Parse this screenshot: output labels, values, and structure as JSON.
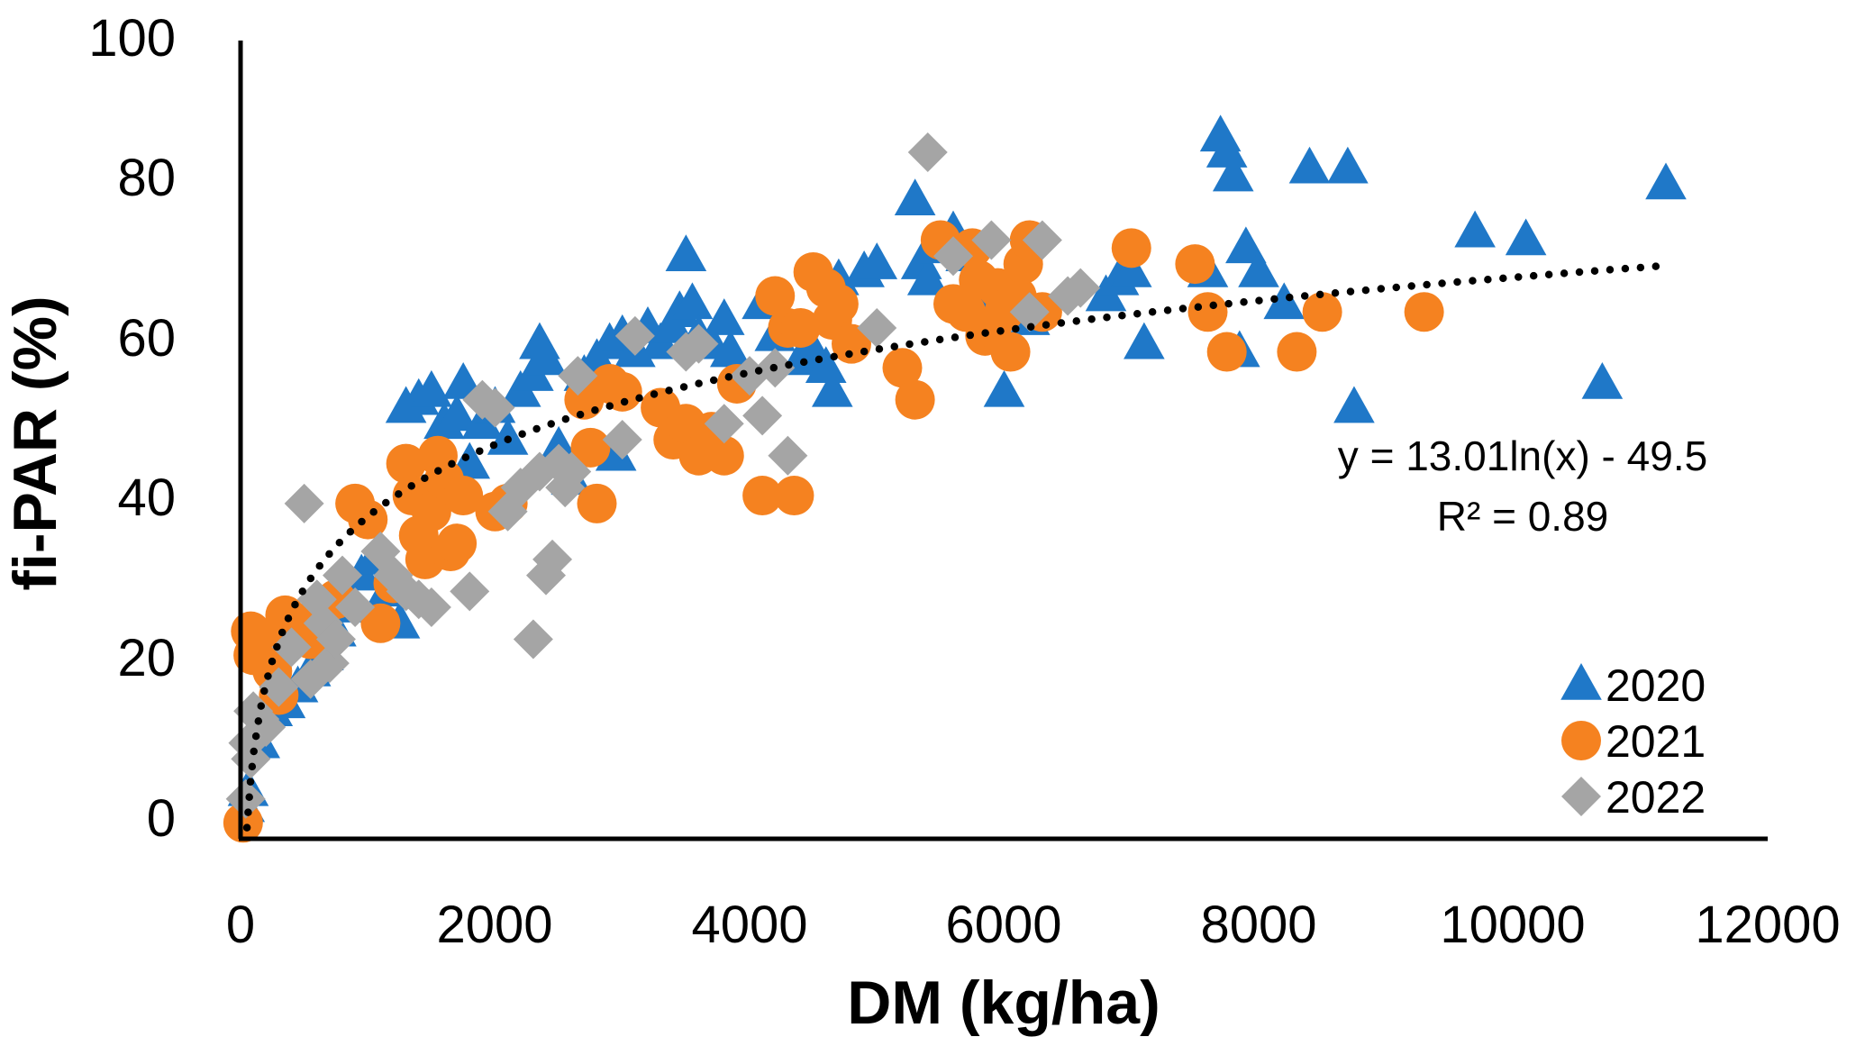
{
  "chart_data": {
    "type": "scatter",
    "xlabel": "DM (kg/ha)",
    "ylabel": "fi-PAR (%)",
    "xlim": [
      0,
      12000
    ],
    "ylim": [
      0,
      100
    ],
    "x_ticks": [
      "0",
      "2000",
      "4000",
      "6000",
      "8000",
      "10000",
      "12000"
    ],
    "y_ticks": [
      "0",
      "20",
      "40",
      "60",
      "80",
      "100"
    ],
    "grid": false,
    "legend_position": "bottom-right",
    "trendline": {
      "type": "logarithmic",
      "a": 13.01,
      "b": -49.5,
      "x_range": [
        50,
        11200
      ],
      "equation": "y = 13.01ln(x) - 49.5",
      "r_squared_label": "R² = 0.89",
      "color": "#000000"
    },
    "series": [
      {
        "name": "2020",
        "marker": "triangle",
        "color": "#1F78C8",
        "points": [
          [
            30,
            4
          ],
          [
            60,
            6
          ],
          [
            150,
            12
          ],
          [
            250,
            16
          ],
          [
            350,
            17
          ],
          [
            450,
            19
          ],
          [
            550,
            21
          ],
          [
            650,
            23
          ],
          [
            750,
            26
          ],
          [
            850,
            29
          ],
          [
            950,
            33
          ],
          [
            1050,
            35
          ],
          [
            1150,
            31
          ],
          [
            1250,
            27
          ],
          [
            1300,
            54
          ],
          [
            1400,
            55
          ],
          [
            1500,
            56
          ],
          [
            1600,
            52
          ],
          [
            1700,
            53
          ],
          [
            1750,
            57
          ],
          [
            1800,
            47
          ],
          [
            1900,
            52
          ],
          [
            2000,
            54
          ],
          [
            2100,
            50
          ],
          [
            2200,
            56
          ],
          [
            2300,
            58
          ],
          [
            2350,
            62
          ],
          [
            2400,
            60
          ],
          [
            2500,
            49
          ],
          [
            2600,
            45
          ],
          [
            2700,
            58
          ],
          [
            2800,
            60
          ],
          [
            2900,
            62
          ],
          [
            2950,
            48
          ],
          [
            3000,
            63
          ],
          [
            3100,
            61
          ],
          [
            3200,
            64
          ],
          [
            3300,
            62
          ],
          [
            3400,
            64
          ],
          [
            3450,
            66
          ],
          [
            3500,
            73
          ],
          [
            3550,
            67
          ],
          [
            3600,
            63
          ],
          [
            3700,
            62
          ],
          [
            3800,
            65
          ],
          [
            3850,
            61
          ],
          [
            4100,
            67
          ],
          [
            4200,
            63
          ],
          [
            4400,
            60
          ],
          [
            4500,
            61
          ],
          [
            4600,
            59
          ],
          [
            4650,
            56
          ],
          [
            4700,
            70
          ],
          [
            4900,
            71
          ],
          [
            5000,
            72
          ],
          [
            5300,
            80
          ],
          [
            5350,
            72
          ],
          [
            5400,
            70
          ],
          [
            5500,
            74
          ],
          [
            5600,
            76
          ],
          [
            5700,
            73
          ],
          [
            5800,
            70
          ],
          [
            5900,
            68
          ],
          [
            6000,
            56
          ],
          [
            6200,
            65
          ],
          [
            6800,
            68
          ],
          [
            6900,
            70
          ],
          [
            7000,
            71
          ],
          [
            7100,
            62
          ],
          [
            7600,
            71
          ],
          [
            7700,
            88
          ],
          [
            7750,
            86
          ],
          [
            7800,
            83
          ],
          [
            7850,
            61
          ],
          [
            7900,
            74
          ],
          [
            8000,
            71
          ],
          [
            8200,
            67
          ],
          [
            8400,
            84
          ],
          [
            8700,
            84
          ],
          [
            8750,
            54
          ],
          [
            9700,
            76
          ],
          [
            10100,
            75
          ],
          [
            10700,
            57
          ],
          [
            11200,
            82
          ]
        ]
      },
      {
        "name": "2021",
        "marker": "circle",
        "color": "#F58220",
        "points": [
          [
            20,
            2
          ],
          [
            80,
            26
          ],
          [
            100,
            23
          ],
          [
            200,
            24
          ],
          [
            250,
            21
          ],
          [
            300,
            18
          ],
          [
            350,
            28
          ],
          [
            450,
            27
          ],
          [
            550,
            25
          ],
          [
            650,
            29
          ],
          [
            750,
            30
          ],
          [
            900,
            42
          ],
          [
            1000,
            40
          ],
          [
            1100,
            27
          ],
          [
            1200,
            32
          ],
          [
            1300,
            47
          ],
          [
            1350,
            43
          ],
          [
            1400,
            38
          ],
          [
            1450,
            35
          ],
          [
            1500,
            41
          ],
          [
            1550,
            48
          ],
          [
            1600,
            45
          ],
          [
            1650,
            36
          ],
          [
            1700,
            37
          ],
          [
            1750,
            43
          ],
          [
            2000,
            41
          ],
          [
            2100,
            42
          ],
          [
            2700,
            55
          ],
          [
            2750,
            49
          ],
          [
            2800,
            42
          ],
          [
            2900,
            57
          ],
          [
            3000,
            56
          ],
          [
            3300,
            54
          ],
          [
            3400,
            50
          ],
          [
            3500,
            52
          ],
          [
            3600,
            48
          ],
          [
            3700,
            51
          ],
          [
            3800,
            48
          ],
          [
            3900,
            57
          ],
          [
            4100,
            43
          ],
          [
            4200,
            68
          ],
          [
            4300,
            64
          ],
          [
            4350,
            43
          ],
          [
            4400,
            64
          ],
          [
            4500,
            71
          ],
          [
            4600,
            69
          ],
          [
            4650,
            65
          ],
          [
            4700,
            67
          ],
          [
            4800,
            62
          ],
          [
            5200,
            59
          ],
          [
            5300,
            55
          ],
          [
            5500,
            75
          ],
          [
            5600,
            67
          ],
          [
            5700,
            66
          ],
          [
            5750,
            74
          ],
          [
            5800,
            70
          ],
          [
            5850,
            63
          ],
          [
            5900,
            64
          ],
          [
            5950,
            69
          ],
          [
            6000,
            66
          ],
          [
            6050,
            61
          ],
          [
            6100,
            68
          ],
          [
            6150,
            72
          ],
          [
            6200,
            75
          ],
          [
            6300,
            66
          ],
          [
            7000,
            74
          ],
          [
            7500,
            72
          ],
          [
            7600,
            66
          ],
          [
            7750,
            61
          ],
          [
            8300,
            61
          ],
          [
            8500,
            66
          ],
          [
            9300,
            66
          ]
        ]
      },
      {
        "name": "2022",
        "marker": "diamond",
        "color": "#A5A5A5",
        "points": [
          [
            40,
            5
          ],
          [
            60,
            12
          ],
          [
            80,
            10
          ],
          [
            100,
            16
          ],
          [
            150,
            15
          ],
          [
            200,
            14
          ],
          [
            300,
            19
          ],
          [
            400,
            24
          ],
          [
            500,
            42
          ],
          [
            550,
            20
          ],
          [
            600,
            30
          ],
          [
            650,
            27
          ],
          [
            700,
            22
          ],
          [
            750,
            25
          ],
          [
            800,
            33
          ],
          [
            900,
            29
          ],
          [
            1100,
            36
          ],
          [
            1200,
            33
          ],
          [
            1300,
            31
          ],
          [
            1400,
            30
          ],
          [
            1500,
            29
          ],
          [
            1800,
            31
          ],
          [
            1900,
            55
          ],
          [
            2000,
            54
          ],
          [
            2100,
            41
          ],
          [
            2200,
            44
          ],
          [
            2300,
            25
          ],
          [
            2350,
            46
          ],
          [
            2400,
            33
          ],
          [
            2450,
            35
          ],
          [
            2500,
            47
          ],
          [
            2550,
            44
          ],
          [
            2600,
            46
          ],
          [
            2650,
            58
          ],
          [
            3000,
            50
          ],
          [
            3100,
            63
          ],
          [
            3500,
            61
          ],
          [
            3600,
            62
          ],
          [
            3800,
            52
          ],
          [
            4000,
            58
          ],
          [
            4100,
            53
          ],
          [
            4200,
            59
          ],
          [
            4300,
            48
          ],
          [
            5000,
            64
          ],
          [
            5400,
            86
          ],
          [
            5600,
            73
          ],
          [
            5900,
            75
          ],
          [
            6200,
            66
          ],
          [
            6300,
            75
          ],
          [
            6500,
            68
          ],
          [
            6600,
            69
          ]
        ]
      }
    ]
  }
}
